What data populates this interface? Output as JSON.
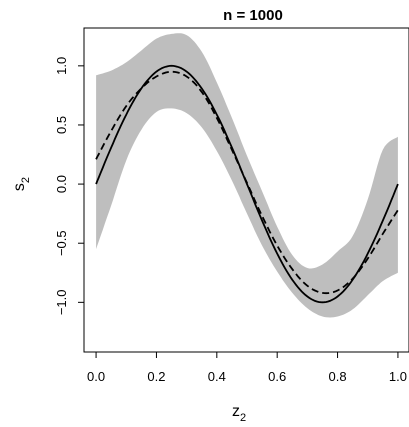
{
  "chart_data": {
    "type": "line",
    "title": "n = 1000",
    "xlabel": {
      "base": "z",
      "sub": "2"
    },
    "ylabel": {
      "base": "s",
      "sub": "2"
    },
    "xlim": [
      -0.04,
      1.04
    ],
    "ylim": [
      -1.42,
      1.32
    ],
    "x_ticks": [
      0.0,
      0.2,
      0.4,
      0.6,
      0.8,
      1.0
    ],
    "x_tick_labels": [
      "0.0",
      "0.2",
      "0.4",
      "0.6",
      "0.8",
      "1.0"
    ],
    "y_ticks": [
      -1.0,
      -0.5,
      0.0,
      0.5,
      1.0
    ],
    "y_tick_labels": [
      "−1.0",
      "−0.5",
      "0.0",
      "0.5",
      "1.0"
    ],
    "grid": false,
    "legend": "none",
    "x": [
      0.0,
      0.05,
      0.1,
      0.15,
      0.2,
      0.25,
      0.3,
      0.35,
      0.4,
      0.45,
      0.5,
      0.55,
      0.6,
      0.65,
      0.7,
      0.75,
      0.8,
      0.85,
      0.9,
      0.95,
      1.0
    ],
    "series": [
      {
        "style": "solid",
        "values": [
          0.0,
          0.309,
          0.588,
          0.809,
          0.951,
          1.0,
          0.951,
          0.809,
          0.588,
          0.309,
          0.0,
          -0.309,
          -0.588,
          -0.809,
          -0.951,
          -1.0,
          -0.951,
          -0.809,
          -0.588,
          -0.309,
          0.0
        ]
      },
      {
        "style": "dashed",
        "values": [
          0.21,
          0.45,
          0.66,
          0.81,
          0.91,
          0.95,
          0.91,
          0.78,
          0.56,
          0.29,
          0.01,
          -0.27,
          -0.52,
          -0.72,
          -0.86,
          -0.92,
          -0.9,
          -0.8,
          -0.63,
          -0.42,
          -0.22
        ]
      }
    ],
    "band": {
      "color": "#bebebe",
      "lower": [
        -0.55,
        -0.18,
        0.2,
        0.46,
        0.61,
        0.64,
        0.6,
        0.48,
        0.28,
        0.03,
        -0.25,
        -0.52,
        -0.74,
        -0.92,
        -1.05,
        -1.12,
        -1.12,
        -1.06,
        -0.94,
        -0.82,
        -0.75
      ],
      "upper": [
        0.92,
        0.96,
        1.03,
        1.13,
        1.23,
        1.27,
        1.26,
        1.12,
        0.86,
        0.56,
        0.24,
        -0.06,
        -0.36,
        -0.6,
        -0.71,
        -0.68,
        -0.57,
        -0.44,
        -0.13,
        0.29,
        0.4
      ]
    }
  }
}
